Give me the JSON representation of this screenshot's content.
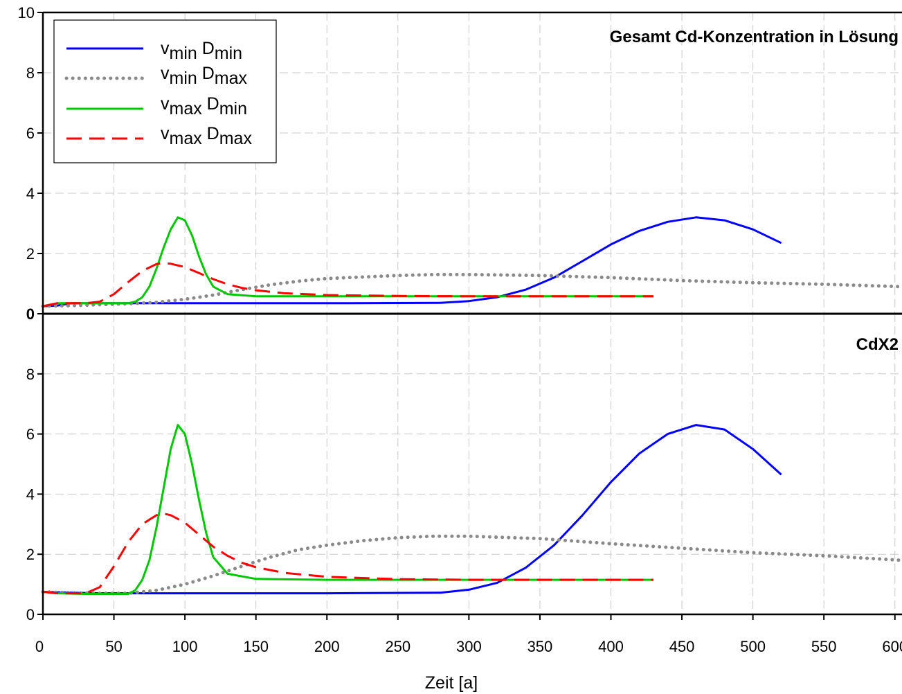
{
  "xlabel": "Zeit [a]",
  "legend": [
    {
      "v": "min",
      "d": "min"
    },
    {
      "v": "min",
      "d": "max"
    },
    {
      "v": "max",
      "d": "min"
    },
    {
      "v": "max",
      "d": "max"
    }
  ],
  "chart_data": [
    {
      "type": "line",
      "title": "Gesamt Cd-Konzentration in Lösung",
      "xlabel": "Zeit [a]",
      "ylabel": "",
      "xlim": [
        0,
        605
      ],
      "ylim": [
        0,
        10
      ],
      "xticks": [
        0,
        50,
        100,
        150,
        200,
        250,
        300,
        350,
        400,
        450,
        500,
        550,
        600
      ],
      "yticks": [
        0,
        2,
        4,
        6,
        8,
        10
      ],
      "ytick_labels": [
        "0",
        "2",
        "4",
        "6",
        "8",
        "10"
      ],
      "grid": true,
      "legend_position": "top-left",
      "series": [
        {
          "name": "v_min D_min",
          "color": "#0000ff",
          "style": "solid",
          "x": [
            0,
            10,
            20,
            100,
            200,
            280,
            300,
            320,
            340,
            360,
            380,
            400,
            420,
            440,
            460,
            480,
            500,
            520
          ],
          "y": [
            0.25,
            0.27,
            0.35,
            0.35,
            0.35,
            0.36,
            0.42,
            0.55,
            0.8,
            1.2,
            1.75,
            2.3,
            2.75,
            3.05,
            3.2,
            3.1,
            2.8,
            2.35
          ]
        },
        {
          "name": "v_min D_max",
          "color": "#8a8a8a",
          "style": "dotted",
          "x": [
            0,
            20,
            40,
            60,
            80,
            100,
            120,
            140,
            160,
            180,
            200,
            250,
            275,
            300,
            350,
            400,
            450,
            500,
            550,
            605
          ],
          "y": [
            0.25,
            0.27,
            0.3,
            0.33,
            0.38,
            0.48,
            0.62,
            0.8,
            0.96,
            1.08,
            1.17,
            1.27,
            1.3,
            1.3,
            1.27,
            1.2,
            1.1,
            1.03,
            0.98,
            0.9
          ]
        },
        {
          "name": "v_max D_min",
          "color": "#00c800",
          "style": "solid",
          "x": [
            0,
            10,
            30,
            60,
            65,
            70,
            75,
            80,
            85,
            90,
            95,
            100,
            105,
            110,
            115,
            120,
            130,
            150,
            200,
            300,
            400,
            430
          ],
          "y": [
            0.25,
            0.35,
            0.35,
            0.35,
            0.4,
            0.55,
            0.9,
            1.5,
            2.2,
            2.8,
            3.2,
            3.1,
            2.6,
            1.9,
            1.3,
            0.9,
            0.65,
            0.58,
            0.58,
            0.58,
            0.58,
            0.58
          ]
        },
        {
          "name": "v_max D_max",
          "color": "#ff0000",
          "style": "dashed",
          "x": [
            0,
            10,
            30,
            40,
            50,
            60,
            70,
            80,
            85,
            90,
            100,
            110,
            120,
            130,
            140,
            150,
            170,
            200,
            250,
            300,
            350,
            430
          ],
          "y": [
            0.25,
            0.35,
            0.35,
            0.4,
            0.65,
            1.05,
            1.42,
            1.65,
            1.68,
            1.66,
            1.55,
            1.35,
            1.15,
            0.98,
            0.86,
            0.78,
            0.68,
            0.62,
            0.59,
            0.58,
            0.58,
            0.58
          ]
        }
      ]
    },
    {
      "type": "line",
      "title": "CdX2",
      "xlabel": "Zeit [a]",
      "ylabel": "",
      "xlim": [
        0,
        605
      ],
      "ylim": [
        0,
        10
      ],
      "xticks": [
        0,
        50,
        100,
        150,
        200,
        250,
        300,
        350,
        400,
        450,
        500,
        550,
        600
      ],
      "yticks": [
        0,
        2,
        4,
        6,
        8
      ],
      "ytick_labels": [
        "0",
        "2",
        "4",
        "6",
        "8"
      ],
      "grid": true,
      "series": [
        {
          "name": "v_min D_min",
          "color": "#0000ff",
          "style": "solid",
          "x": [
            0,
            20,
            40,
            100,
            200,
            280,
            300,
            320,
            340,
            360,
            380,
            400,
            420,
            440,
            460,
            480,
            500,
            520
          ],
          "y": [
            0.75,
            0.72,
            0.7,
            0.7,
            0.7,
            0.72,
            0.82,
            1.05,
            1.55,
            2.3,
            3.3,
            4.4,
            5.35,
            6.0,
            6.3,
            6.15,
            5.5,
            4.65
          ]
        },
        {
          "name": "v_min D_max",
          "color": "#8a8a8a",
          "style": "dotted",
          "x": [
            0,
            20,
            40,
            60,
            80,
            100,
            120,
            140,
            160,
            180,
            200,
            225,
            250,
            275,
            300,
            350,
            400,
            450,
            500,
            550,
            605
          ],
          "y": [
            0.75,
            0.72,
            0.7,
            0.7,
            0.8,
            1.0,
            1.28,
            1.6,
            1.9,
            2.15,
            2.3,
            2.45,
            2.55,
            2.6,
            2.6,
            2.52,
            2.35,
            2.2,
            2.05,
            1.95,
            1.8
          ]
        },
        {
          "name": "v_max D_min",
          "color": "#00c800",
          "style": "solid",
          "x": [
            0,
            10,
            30,
            60,
            65,
            70,
            75,
            80,
            85,
            90,
            95,
            100,
            105,
            110,
            115,
            120,
            130,
            150,
            200,
            300,
            400,
            430
          ],
          "y": [
            0.75,
            0.7,
            0.68,
            0.68,
            0.8,
            1.15,
            1.8,
            2.9,
            4.2,
            5.5,
            6.3,
            6.0,
            5.0,
            3.8,
            2.7,
            1.9,
            1.35,
            1.18,
            1.15,
            1.15,
            1.15,
            1.15
          ]
        },
        {
          "name": "v_max D_max",
          "color": "#ff0000",
          "style": "dashed",
          "x": [
            0,
            10,
            30,
            40,
            50,
            60,
            70,
            80,
            85,
            90,
            100,
            110,
            120,
            130,
            140,
            150,
            170,
            200,
            250,
            300,
            350,
            430
          ],
          "y": [
            0.75,
            0.7,
            0.7,
            0.9,
            1.6,
            2.4,
            3.0,
            3.3,
            3.35,
            3.3,
            3.05,
            2.65,
            2.25,
            1.95,
            1.72,
            1.57,
            1.38,
            1.25,
            1.17,
            1.15,
            1.15,
            1.15
          ]
        }
      ]
    }
  ]
}
